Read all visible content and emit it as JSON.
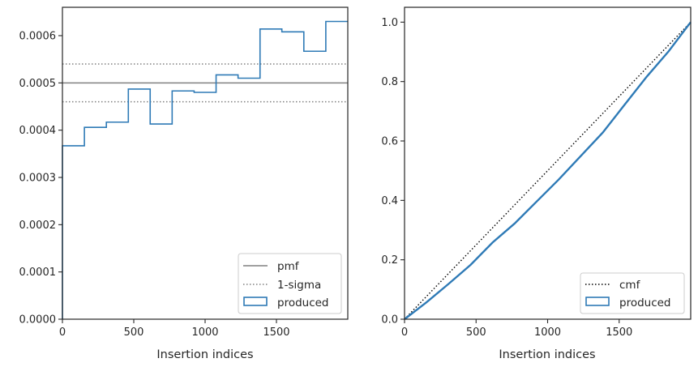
{
  "chart_data": [
    {
      "type": "step-histogram",
      "xlabel": "Insertion indices",
      "ylabel": "",
      "xlim": [
        0,
        2000
      ],
      "ylim": [
        0,
        0.00066
      ],
      "xticks": [
        0,
        500,
        1000,
        1500
      ],
      "yticks": [
        0,
        0.0001,
        0.0002,
        0.0003,
        0.0004,
        0.0005,
        0.0006
      ],
      "ytick_labels": [
        "0.0000",
        "0.0001",
        "0.0002",
        "0.0003",
        "0.0004",
        "0.0005",
        "0.0006"
      ],
      "legend_position": "lower-right",
      "reference_lines": [
        {
          "name": "pmf",
          "value": 0.0005,
          "style": "solid",
          "color": "#808080"
        },
        {
          "name": "1-sigma",
          "value": 0.00054,
          "style": "dotted",
          "color": "#808080"
        },
        {
          "name": "",
          "value": 0.00046,
          "style": "dotted",
          "color": "#808080"
        }
      ],
      "series": [
        {
          "name": "produced",
          "color": "#2e7ab6",
          "bin_edges": [
            0,
            154,
            308,
            462,
            615,
            769,
            923,
            1077,
            1231,
            1385,
            1538,
            1692,
            1846,
            2000
          ],
          "values": [
            0.000367,
            0.000406,
            0.000417,
            0.000487,
            0.000413,
            0.000483,
            0.00048,
            0.000517,
            0.00051,
            0.000614,
            0.000608,
            0.000567,
            0.00063
          ]
        }
      ]
    },
    {
      "type": "line",
      "xlabel": "Insertion indices",
      "ylabel": "",
      "xlim": [
        0,
        2000
      ],
      "ylim": [
        0,
        1.05
      ],
      "xticks": [
        0,
        500,
        1000,
        1500
      ],
      "yticks": [
        0,
        0.2,
        0.4,
        0.6,
        0.8,
        1.0
      ],
      "ytick_labels": [
        "0.0",
        "0.2",
        "0.4",
        "0.6",
        "0.8",
        "1.0"
      ],
      "legend_position": "lower-right",
      "series": [
        {
          "name": "cmf",
          "style": "dotted",
          "color": "#000000",
          "x": [
            0,
            2000
          ],
          "y": [
            0,
            1.0
          ]
        },
        {
          "name": "produced",
          "style": "solid",
          "color": "#2e7ab6",
          "x": [
            0,
            154,
            308,
            462,
            615,
            769,
            923,
            1077,
            1231,
            1385,
            1538,
            1692,
            1846,
            2000
          ],
          "y": [
            0,
            0.057,
            0.119,
            0.183,
            0.258,
            0.322,
            0.396,
            0.47,
            0.549,
            0.628,
            0.722,
            0.816,
            0.902,
            1.0
          ]
        }
      ]
    }
  ]
}
